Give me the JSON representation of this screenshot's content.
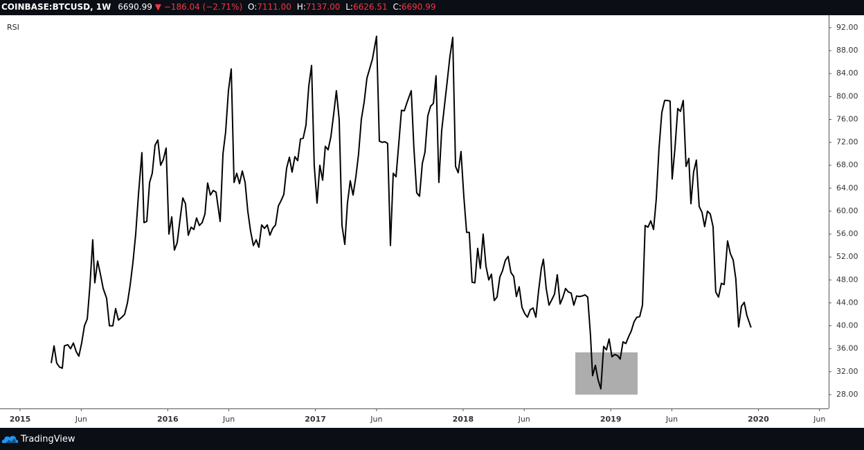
{
  "header": {
    "symbol": "COINBASE:BTCUSD, 1W",
    "last": "6690.99",
    "arrow": "▼",
    "change": "−186.04 (−2.71%)",
    "open_label": "O:",
    "open": "7111.00",
    "high_label": "H:",
    "high": "7137.00",
    "low_label": "L:",
    "low": "6626.51",
    "close_label": "C:",
    "close": "6690.99"
  },
  "footer": {
    "brand": "TradingView"
  },
  "chart_data": {
    "type": "line",
    "title": "RSI",
    "color": "#000000",
    "grid": false,
    "xlim": [
      2014.864,
      2020.476
    ],
    "xticks": [
      2015,
      {
        "value": 2015.414,
        "label": "Jun"
      },
      2016,
      {
        "value": 2016.414,
        "label": "Jun"
      },
      2017,
      {
        "value": 2017.414,
        "label": "Jun"
      },
      2018,
      {
        "value": 2018.414,
        "label": "Jun"
      },
      2019,
      {
        "value": 2019.414,
        "label": "Jun"
      },
      2020,
      {
        "value": 2020.414,
        "label": "Jun"
      }
    ],
    "ylim": [
      25.58,
      94.17
    ],
    "yticks": [
      {
        "value": 28,
        "label": "28.00"
      },
      {
        "value": 32,
        "label": "32.00"
      },
      {
        "value": 36,
        "label": "36.00"
      },
      {
        "value": 40,
        "label": "40.00"
      },
      {
        "value": 44,
        "label": "44.00"
      },
      {
        "value": 48,
        "label": "48.00"
      },
      {
        "value": 52,
        "label": "52.00"
      },
      {
        "value": 56,
        "label": "56.00"
      },
      {
        "value": 60,
        "label": "60.00"
      },
      {
        "value": 64,
        "label": "64.00"
      },
      {
        "value": 68,
        "label": "68.00"
      },
      {
        "value": 72,
        "label": "72.00"
      },
      {
        "value": 76,
        "label": "76.00"
      },
      {
        "value": 80,
        "label": "80.00"
      },
      {
        "value": 84,
        "label": "84.00"
      },
      {
        "value": 88,
        "label": "88.00"
      },
      {
        "value": 92,
        "label": "92.00"
      }
    ],
    "x": [
      2015.211,
      2015.23,
      2015.248,
      2015.267,
      2015.286,
      2015.3,
      2015.323,
      2015.342,
      2015.361,
      2015.38,
      2015.398,
      2015.417,
      2015.436,
      2015.455,
      2015.473,
      2015.492,
      2015.506,
      2015.525,
      2015.544,
      2015.563,
      2015.586,
      2015.605,
      2015.628,
      2015.647,
      2015.666,
      2015.689,
      2015.708,
      2015.727,
      2015.745,
      2015.764,
      2015.783,
      2015.802,
      2015.825,
      2015.839,
      2015.858,
      2015.877,
      2015.895,
      2015.914,
      2015.933,
      2015.952,
      2015.97,
      2015.989,
      2016.008,
      2016.027,
      2016.045,
      2016.064,
      2016.083,
      2016.102,
      2016.12,
      2016.139,
      2016.158,
      2016.177,
      2016.195,
      2016.214,
      2016.233,
      2016.252,
      2016.27,
      2016.289,
      2016.308,
      2016.327,
      2016.355,
      2016.374,
      2016.392,
      2016.411,
      2016.43,
      2016.449,
      2016.467,
      2016.486,
      2016.505,
      2016.524,
      2016.542,
      2016.561,
      2016.58,
      2016.599,
      2016.617,
      2016.636,
      2016.655,
      2016.674,
      2016.692,
      2016.711,
      2016.73,
      2016.749,
      2016.767,
      2016.786,
      2016.805,
      2016.824,
      2016.842,
      2016.861,
      2016.88,
      2016.899,
      2016.917,
      2016.936,
      2016.955,
      2016.974,
      2016.992,
      2017.011,
      2017.03,
      2017.049,
      2017.067,
      2017.086,
      2017.105,
      2017.124,
      2017.142,
      2017.161,
      2017.18,
      2017.199,
      2017.217,
      2017.236,
      2017.255,
      2017.274,
      2017.292,
      2017.311,
      2017.33,
      2017.349,
      2017.367,
      2017.386,
      2017.414,
      2017.433,
      2017.452,
      2017.471,
      2017.489,
      2017.508,
      2017.527,
      2017.546,
      2017.564,
      2017.583,
      2017.602,
      2017.621,
      2017.649,
      2017.667,
      2017.686,
      2017.705,
      2017.724,
      2017.742,
      2017.761,
      2017.78,
      2017.799,
      2017.817,
      2017.836,
      2017.855,
      2017.874,
      2017.892,
      2017.911,
      2017.93,
      2017.949,
      2017.967,
      2017.986,
      2018.005,
      2018.024,
      2018.042,
      2018.061,
      2018.08,
      2018.099,
      2018.117,
      2018.136,
      2018.155,
      2018.174,
      2018.192,
      2018.211,
      2018.23,
      2018.249,
      2018.267,
      2018.286,
      2018.305,
      2018.324,
      2018.343,
      2018.361,
      2018.38,
      2018.399,
      2018.418,
      2018.436,
      2018.455,
      2018.474,
      2018.493,
      2018.511,
      2018.53,
      2018.544,
      2018.563,
      2018.582,
      2018.6,
      2018.619,
      2018.638,
      2018.657,
      2018.675,
      2018.694,
      2018.713,
      2018.732,
      2018.75,
      2018.769,
      2018.788,
      2018.807,
      2018.825,
      2018.844,
      2018.863,
      2018.877,
      2018.896,
      2018.914,
      2018.933,
      2018.952,
      2018.971,
      2018.989,
      2019.008,
      2019.027,
      2019.046,
      2019.064,
      2019.083,
      2019.102,
      2019.121,
      2019.139,
      2019.158,
      2019.177,
      2019.196,
      2019.215,
      2019.233,
      2019.252,
      2019.271,
      2019.29,
      2019.308,
      2019.327,
      2019.346,
      2019.365,
      2019.383,
      2019.402,
      2019.416,
      2019.435,
      2019.454,
      2019.472,
      2019.491,
      2019.51,
      2019.529,
      2019.543,
      2019.561,
      2019.58,
      2019.599,
      2019.618,
      2019.636,
      2019.655,
      2019.674,
      2019.693,
      2019.711,
      2019.73,
      2019.749,
      2019.768,
      2019.791,
      2019.81,
      2019.829,
      2019.847,
      2019.866,
      2019.885,
      2019.904,
      2019.922,
      2019.95
    ],
    "values": [
      33.5,
      36.5,
      33.5,
      32.8,
      32.6,
      36.5,
      36.7,
      36,
      37,
      35.5,
      34.7,
      37,
      40,
      41.2,
      47,
      55,
      47.5,
      51.3,
      49,
      46.5,
      44.8,
      40,
      40,
      43,
      41,
      41.5,
      42,
      44,
      47,
      51,
      56,
      63,
      70.2,
      58,
      58.2,
      65,
      66.6,
      71.5,
      72.4,
      68,
      69,
      71,
      56,
      59,
      53.2,
      54.5,
      58.5,
      62.3,
      61.3,
      55.8,
      57.2,
      56.8,
      58.8,
      57.5,
      58,
      59.5,
      64.9,
      62.8,
      63.6,
      63.3,
      58.2,
      70,
      73.8,
      81,
      84.8,
      65,
      66.6,
      64.8,
      67,
      65,
      60,
      56.5,
      54,
      55,
      53.7,
      57.6,
      57,
      57.6,
      55.8,
      57,
      57.6,
      60.9,
      61.8,
      62.9,
      67.5,
      69.4,
      66.8,
      69.5,
      68.8,
      72.6,
      72.7,
      75,
      81.8,
      85.4,
      68,
      61.4,
      68,
      65.4,
      71.3,
      70.7,
      73,
      77,
      81,
      76,
      57.5,
      54.2,
      61.4,
      65.3,
      62.8,
      66,
      69.9,
      76,
      79,
      83.2,
      84.8,
      86.5,
      90.5,
      72.2,
      72,
      72.1,
      71.8,
      54,
      66.6,
      66,
      71.6,
      77.6,
      77.5,
      79,
      81,
      71,
      63.2,
      62.6,
      68.3,
      70.3,
      76.6,
      78.3,
      78.8,
      83.6,
      65,
      74,
      78.4,
      82.5,
      87,
      90.3,
      67.8,
      66.7,
      70.4,
      62.6,
      56.3,
      56.3,
      47.6,
      47.5,
      53.5,
      50,
      56,
      50.4,
      48,
      49,
      44.4,
      45,
      48.5,
      49.6,
      51.4,
      52.1,
      49.3,
      48.6,
      45.1,
      46.8,
      43.2,
      42.1,
      41.5,
      42.8,
      43.1,
      41.5,
      46,
      50,
      51.6,
      46.5,
      43.6,
      44.5,
      45.5,
      48.9,
      43.8,
      44.9,
      46.5,
      45.9,
      45.7,
      43.6,
      45.2,
      45.1,
      45.2,
      45.4,
      45,
      38.3,
      31.3,
      33.1,
      30.6,
      29,
      36.4,
      35.8,
      37.7,
      34.6,
      35,
      34.8,
      34.2,
      37.2,
      36.9,
      38.1,
      39.1,
      40.7,
      41.5,
      41.6,
      43.6,
      57.5,
      57.2,
      58.3,
      56.8,
      62,
      71,
      77.2,
      79.3,
      79.3,
      79.2,
      65.6,
      71,
      77.9,
      77.4,
      79.3,
      67.8,
      69.2,
      61.3,
      66.8,
      68.9,
      60.8,
      59.8,
      57.3,
      60,
      59.5,
      57.3,
      45.9,
      45,
      47.4,
      47.2,
      54.8,
      52.6,
      51.5,
      48.2,
      39.8,
      43.4,
      44.1,
      41.8,
      39.7
    ]
  }
}
